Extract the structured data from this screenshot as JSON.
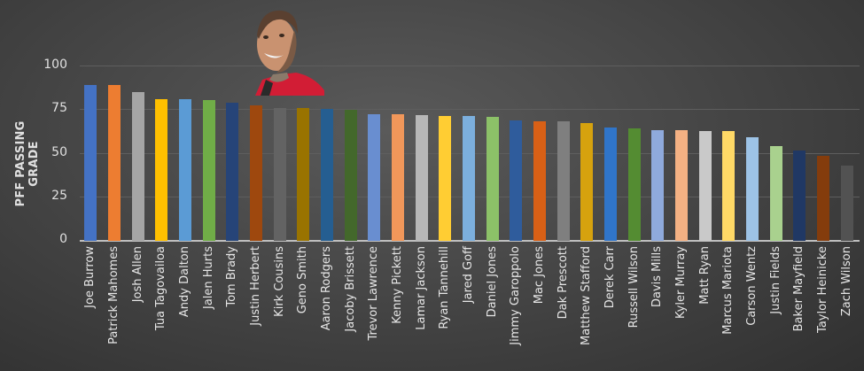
{
  "chart_data": {
    "type": "bar",
    "title": "",
    "xlabel": "",
    "ylabel": "PFF PASSING GRADE",
    "ylim": [
      0,
      100
    ],
    "yticks": [
      0,
      25,
      50,
      75,
      100
    ],
    "grid": true,
    "legend": "none",
    "categories": [
      "Joe Burrow",
      "Patrick Mahomes",
      "Josh Allen",
      "Tua Tagovailoa",
      "Andy Dalton",
      "Jalen Hurts",
      "Tom Brady",
      "Justin Herbert",
      "Kirk Cousins",
      "Geno Smith",
      "Aaron Rodgers",
      "Jacoby Brissett",
      "Trevor Lawrence",
      "Kenny Pickett",
      "Lamar Jackson",
      "Ryan Tannehill",
      "Jared Goff",
      "Daniel Jones",
      "Jimmy Garoppolo",
      "Mac Jones",
      "Dak Prescott",
      "Matthew Stafford",
      "Derek Carr",
      "Russell Wilson",
      "Davis Mills",
      "Kyler Murray",
      "Matt Ryan",
      "Marcus Mariota",
      "Carson Wentz",
      "Justin Fields",
      "Baker Mayfield",
      "Taylor Heinicke",
      "Zach Wilson"
    ],
    "values": [
      89.3,
      89.3,
      85.3,
      81.2,
      81.2,
      80.7,
      79.2,
      77.7,
      76.1,
      76.1,
      75.6,
      75.1,
      72.6,
      72.6,
      72.1,
      71.6,
      71.6,
      71.1,
      69.0,
      68.5,
      68.5,
      67.5,
      65.0,
      64.5,
      63.5,
      63.5,
      62.9,
      62.9,
      59.4,
      54.3,
      51.8,
      48.7,
      43.1
    ],
    "colors": [
      "#4472c4",
      "#ed7d31",
      "#a5a5a5",
      "#ffc000",
      "#5b9bd5",
      "#70ad47",
      "#264478",
      "#9e480e",
      "#636363",
      "#997300",
      "#255e91",
      "#43682b",
      "#698ed0",
      "#f1975a",
      "#b7b7b7",
      "#ffcd33",
      "#7cafdd",
      "#8cc168",
      "#2f5c9c",
      "#d86016",
      "#7f7f7f",
      "#d6a20e",
      "#3075c9",
      "#548c32",
      "#8faadc",
      "#f4b183",
      "#c9c9c9",
      "#ffd966",
      "#9dc3e6",
      "#a9d18e",
      "#203864",
      "#843c0c",
      "#525252"
    ]
  },
  "axis": {
    "ylabel": "PFF PASSING GRADE",
    "ticks": [
      "0",
      "25",
      "50",
      "75",
      "100"
    ]
  },
  "decoration": {
    "photo": "player-headshot-red-jersey"
  }
}
